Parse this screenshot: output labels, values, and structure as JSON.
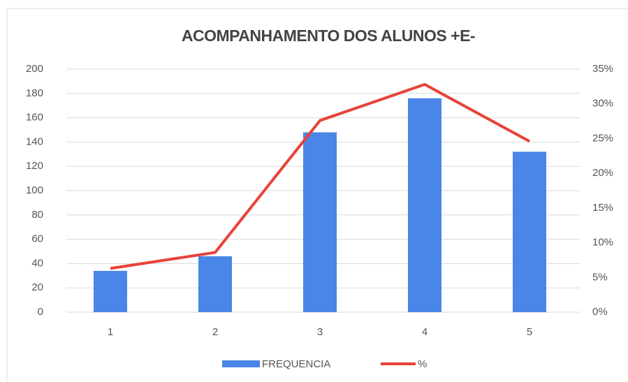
{
  "chart_data": {
    "type": "bar_line",
    "title": "ACOMPANHAMENTO DOS ALUNOS +E-",
    "categories": [
      "1",
      "2",
      "3",
      "4",
      "5"
    ],
    "series": [
      {
        "name": "FREQUENCIA",
        "type": "bar",
        "color": "#4a86e8",
        "values": [
          34,
          46,
          148,
          176,
          132
        ]
      },
      {
        "name": "%",
        "type": "line",
        "axis": "y2",
        "color": "#e8423a",
        "values": [
          6.3,
          8.6,
          27.6,
          32.8,
          24.6
        ]
      }
    ],
    "ylim": [
      0,
      200
    ],
    "yticks": [
      0,
      20,
      40,
      60,
      80,
      100,
      120,
      140,
      160,
      180,
      200
    ],
    "y2lim": [
      0,
      35
    ],
    "y2ticks": [
      {
        "value": 0,
        "label": "0%"
      },
      {
        "value": 5,
        "label": "5%"
      },
      {
        "value": 10,
        "label": "10%"
      },
      {
        "value": 15,
        "label": "15%"
      },
      {
        "value": 20,
        "label": "20%"
      },
      {
        "value": 25,
        "label": "25%"
      },
      {
        "value": 30,
        "label": "30%"
      },
      {
        "value": 35,
        "label": "35%"
      }
    ],
    "grid": true,
    "legend": "bottom"
  }
}
